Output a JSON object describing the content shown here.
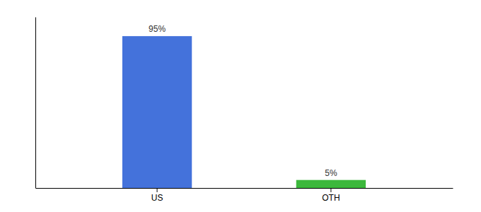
{
  "chart_data": {
    "type": "bar",
    "categories": [
      "US",
      "OTH"
    ],
    "values": [
      95,
      5
    ],
    "value_labels": [
      "95%",
      "5%"
    ],
    "colors": [
      "#4472db",
      "#3cb83c"
    ],
    "ylim": [
      0,
      107
    ],
    "data_labels": true,
    "grid": false,
    "tick_labels": "x"
  }
}
